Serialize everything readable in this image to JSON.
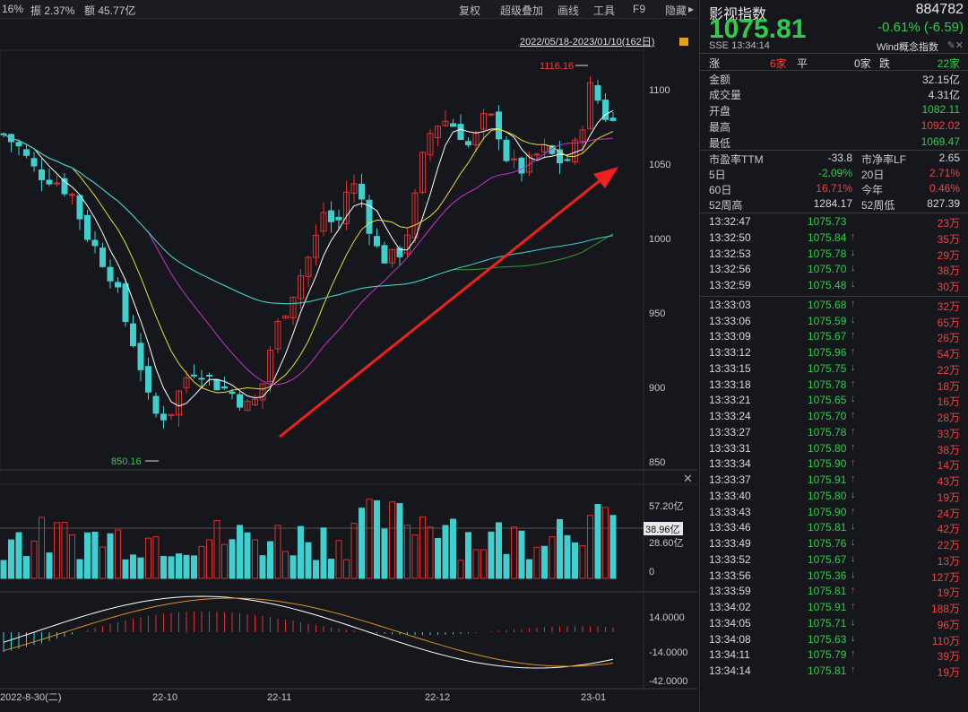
{
  "topbar": {
    "pct": "16%",
    "amplitude": "振 2.37%",
    "amount": "额 45.77亿",
    "tools": [
      "复权",
      "超级叠加",
      "画线",
      "工具",
      "F9",
      "隐藏"
    ]
  },
  "chart": {
    "range_label": "2022/05/18-2023/01/10(162日)",
    "high_marker": "1116.16",
    "low_marker": "850.16",
    "price_ticks": [
      "1100",
      "1050",
      "1000",
      "950",
      "900",
      "850"
    ],
    "vol_ticks": [
      "57.20亿",
      "38.96亿",
      "28.60亿",
      "0"
    ],
    "macd_ticks": [
      "14.0000",
      "-14.0000",
      "-42.0000"
    ],
    "date_ticks": [
      "2022-8-30(二)",
      "22-10",
      "22-11",
      "22-12",
      "23-01"
    ]
  },
  "chart_data": {
    "type": "candlestick",
    "title": "影视指数",
    "ylim": [
      845,
      1120
    ],
    "x_date_labels": [
      "22-10",
      "22-11",
      "22-12",
      "23-01"
    ],
    "high": 1116.16,
    "low": 850.16,
    "last_close": 1075.81
  },
  "quote": {
    "name": "影视指数",
    "code": "884782",
    "price": "1075.81",
    "change": "-0.61% (-6.59)",
    "exchange": "SSE",
    "time": "13:34:14",
    "concept": "Wind概念指数",
    "up_label": "涨",
    "up_count": "6家",
    "flat_label": "平",
    "flat_count": "0家",
    "down_label": "跌",
    "down_count": "22家",
    "amount_label": "金额",
    "amount": "32.15亿",
    "volume_label": "成交量",
    "volume": "4.31亿",
    "open_label": "开盘",
    "open": "1082.11",
    "high_label": "最高",
    "high": "1092.02",
    "low_label": "最低",
    "low": "1069.47",
    "pe_label": "市盈率TTM",
    "pe": "-33.8",
    "pb_label": "市净率LF",
    "pb": "2.65",
    "d5_label": "5日",
    "d5": "-2.09%",
    "d20_label": "20日",
    "d20": "2.71%",
    "d60_label": "60日",
    "d60": "16.71%",
    "ytd_label": "今年",
    "ytd": "0.46%",
    "w52h_label": "52周高",
    "w52h": "1284.17",
    "w52l_label": "52周低",
    "w52l": "827.39"
  },
  "ticks": [
    {
      "t": "13:32:47",
      "p": "1075.73",
      "d": "",
      "v": "23万",
      "c": "r"
    },
    {
      "t": "13:32:50",
      "p": "1075.84",
      "d": "up",
      "v": "35万",
      "c": "r"
    },
    {
      "t": "13:32:53",
      "p": "1075.78",
      "d": "down",
      "v": "29万",
      "c": "r"
    },
    {
      "t": "13:32:56",
      "p": "1075.70",
      "d": "down",
      "v": "38万",
      "c": "r"
    },
    {
      "t": "13:32:59",
      "p": "1075.48",
      "d": "down",
      "v": "30万",
      "c": "r"
    },
    {
      "t": "13:33:03",
      "p": "1075.68",
      "d": "up",
      "v": "32万",
      "c": "r"
    },
    {
      "t": "13:33:06",
      "p": "1075.59",
      "d": "down",
      "v": "65万",
      "c": "r"
    },
    {
      "t": "13:33:09",
      "p": "1075.67",
      "d": "up",
      "v": "26万",
      "c": "r"
    },
    {
      "t": "13:33:12",
      "p": "1075.96",
      "d": "up",
      "v": "54万",
      "c": "r"
    },
    {
      "t": "13:33:15",
      "p": "1075.75",
      "d": "down",
      "v": "22万",
      "c": "r"
    },
    {
      "t": "13:33:18",
      "p": "1075.78",
      "d": "up",
      "v": "18万",
      "c": "r"
    },
    {
      "t": "13:33:21",
      "p": "1075.65",
      "d": "down",
      "v": "16万",
      "c": "r"
    },
    {
      "t": "13:33:24",
      "p": "1075.70",
      "d": "up",
      "v": "28万",
      "c": "r"
    },
    {
      "t": "13:33:27",
      "p": "1075.78",
      "d": "up",
      "v": "33万",
      "c": "r"
    },
    {
      "t": "13:33:31",
      "p": "1075.80",
      "d": "up",
      "v": "38万",
      "c": "r"
    },
    {
      "t": "13:33:34",
      "p": "1075.90",
      "d": "up",
      "v": "14万",
      "c": "r"
    },
    {
      "t": "13:33:37",
      "p": "1075.91",
      "d": "up",
      "v": "43万",
      "c": "r"
    },
    {
      "t": "13:33:40",
      "p": "1075.80",
      "d": "down",
      "v": "19万",
      "c": "r"
    },
    {
      "t": "13:33:43",
      "p": "1075.90",
      "d": "up",
      "v": "24万",
      "c": "r"
    },
    {
      "t": "13:33:46",
      "p": "1075.81",
      "d": "down",
      "v": "42万",
      "c": "r"
    },
    {
      "t": "13:33:49",
      "p": "1075.76",
      "d": "down",
      "v": "22万",
      "c": "r"
    },
    {
      "t": "13:33:52",
      "p": "1075.67",
      "d": "down",
      "v": "13万",
      "c": "r"
    },
    {
      "t": "13:33:56",
      "p": "1075.36",
      "d": "down",
      "v": "127万",
      "c": "r"
    },
    {
      "t": "13:33:59",
      "p": "1075.81",
      "d": "up",
      "v": "19万",
      "c": "r"
    },
    {
      "t": "13:34:02",
      "p": "1075.91",
      "d": "up",
      "v": "188万",
      "c": "r"
    },
    {
      "t": "13:34:05",
      "p": "1075.71",
      "d": "down",
      "v": "96万",
      "c": "r"
    },
    {
      "t": "13:34:08",
      "p": "1075.63",
      "d": "down",
      "v": "110万",
      "c": "r"
    },
    {
      "t": "13:34:11",
      "p": "1075.79",
      "d": "up",
      "v": "39万",
      "c": "r"
    },
    {
      "t": "13:34:14",
      "p": "1075.81",
      "d": "up",
      "v": "19万",
      "c": "r"
    }
  ],
  "colors": {
    "up": "#f04040",
    "down": "#2ecc4c",
    "candle_down": "#3fcfcf",
    "candle_up": "#e03030",
    "bg": "#16171c"
  }
}
